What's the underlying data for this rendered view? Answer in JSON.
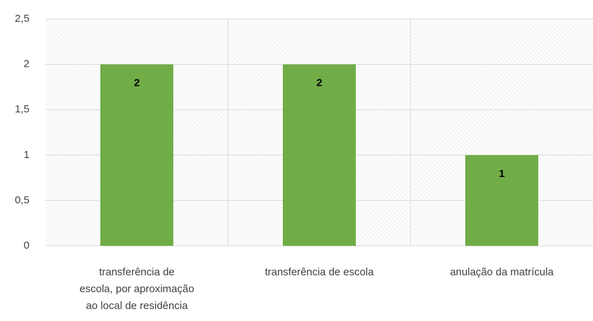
{
  "chart_data": {
    "type": "bar",
    "categories": [
      "transferência de escola, por aproximação ao local de residência",
      "transferência de escola",
      "anulação da matrícula"
    ],
    "values": [
      2,
      2,
      1
    ],
    "color": "#70ad47",
    "ylim": [
      0,
      2.5
    ],
    "yticks": [
      0,
      {
        "value": 0.5,
        "label": "0,5"
      },
      1,
      {
        "value": 1.5,
        "label": "1,5"
      },
      2,
      {
        "value": 2.5,
        "label": "2,5"
      }
    ],
    "grid": true
  }
}
